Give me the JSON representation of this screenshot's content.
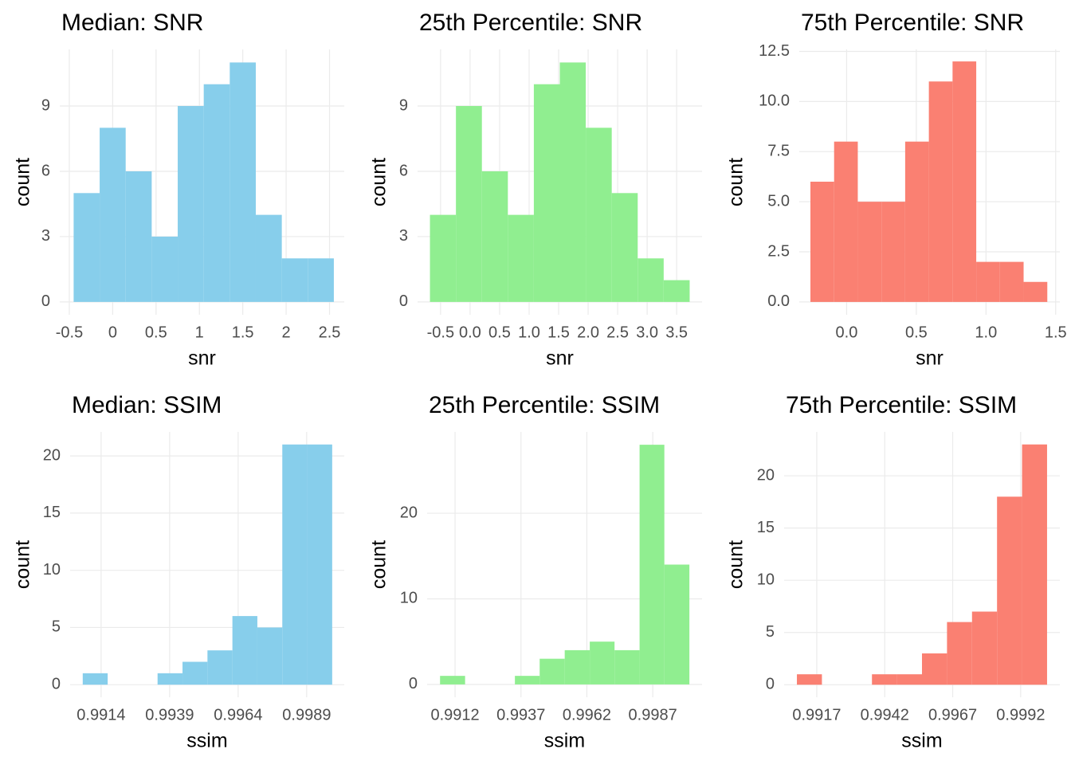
{
  "chart_data": [
    {
      "type": "histogram",
      "title": "Median: SNR",
      "xlabel": "snr",
      "ylabel": "count",
      "color": "#87ceeb",
      "grid": true,
      "bins": [
        -0.45,
        -0.15,
        0.15,
        0.45,
        0.75,
        1.05,
        1.35,
        1.65,
        1.95,
        2.25,
        2.55
      ],
      "counts": [
        5,
        8,
        6,
        3,
        9,
        10,
        11,
        4,
        2,
        2
      ],
      "xlim": [
        -0.61,
        2.67
      ],
      "ylim": [
        -0.59,
        11.6
      ],
      "xticks": [
        -0.5,
        0.0,
        0.5,
        1.0,
        1.5,
        2.0,
        2.5
      ],
      "yticks": [
        0,
        3,
        6,
        9
      ]
    },
    {
      "type": "histogram",
      "title": "25th Percentile: SNR",
      "xlabel": "snr",
      "ylabel": "count",
      "color": "#90ee90",
      "grid": true,
      "bins": [
        -0.68,
        -0.24,
        0.2,
        0.64,
        1.08,
        1.52,
        1.96,
        2.4,
        2.84,
        3.28,
        3.72
      ],
      "counts": [
        4,
        9,
        6,
        4,
        10,
        11,
        8,
        5,
        2,
        1
      ],
      "xlim": [
        -0.89,
        3.93
      ],
      "ylim": [
        -0.59,
        11.6
      ],
      "xticks": [
        -0.5,
        {
          "value": 0,
          "label": "0.0"
        },
        0.5,
        {
          "value": 1,
          "label": "1.0"
        },
        1.5,
        {
          "value": 2,
          "label": "2.0"
        },
        2.5,
        {
          "value": 3,
          "label": "3.0"
        },
        3.5
      ],
      "yticks": [
        0,
        3,
        6,
        9
      ]
    },
    {
      "type": "histogram",
      "title": "75th Percentile: SNR",
      "xlabel": "snr",
      "ylabel": "count",
      "color": "#fa8072",
      "grid": true,
      "bins": [
        -0.26,
        -0.09,
        0.08,
        0.25,
        0.42,
        0.59,
        0.76,
        0.93,
        1.1,
        1.27,
        1.44
      ],
      "counts": [
        6,
        8,
        5,
        5,
        8,
        11,
        12,
        2,
        2,
        1
      ],
      "xlim": [
        -0.34,
        1.53
      ],
      "ylim": [
        -0.64,
        12.6
      ],
      "xticks": [
        {
          "value": 0,
          "label": "0.0"
        },
        0.5,
        {
          "value": 1,
          "label": "1.0"
        },
        1.5
      ],
      "yticks": [
        {
          "value": 0,
          "label": "0.0"
        },
        2.5,
        {
          "value": 5,
          "label": "5.0"
        },
        7.5,
        {
          "value": 10,
          "label": "10.0"
        },
        12.5
      ]
    },
    {
      "type": "histogram",
      "title": "Median: SSIM",
      "xlabel": "ssim",
      "ylabel": "count",
      "color": "#87ceeb",
      "grid": true,
      "bins": [
        0.99073,
        0.99164,
        0.99255,
        0.99346,
        0.99437,
        0.99528,
        0.99619,
        0.9971,
        0.99801,
        0.99892,
        0.99983
      ],
      "counts": [
        1,
        0,
        0,
        1,
        2,
        3,
        6,
        5,
        21,
        21
      ],
      "xlim": [
        0.99027,
        1.00027
      ],
      "ylim": [
        -1.1,
        22.1
      ],
      "xticks": [
        0.9914,
        0.9939,
        0.9964,
        0.9989
      ],
      "yticks": [
        0,
        5,
        10,
        15,
        20
      ]
    },
    {
      "type": "histogram",
      "title": "25th Percentile: SSIM",
      "xlabel": "ssim",
      "ylabel": "count",
      "color": "#90ee90",
      "grid": true,
      "bins": [
        0.99063,
        0.99158,
        0.99252,
        0.99347,
        0.99441,
        0.99536,
        0.99631,
        0.99725,
        0.9982,
        0.99914,
        1.00009
      ],
      "counts": [
        1,
        0,
        0,
        1,
        3,
        4,
        5,
        4,
        28,
        14
      ],
      "xlim": [
        0.99014,
        1.00057
      ],
      "ylim": [
        -1.5,
        29.5
      ],
      "xticks": [
        0.9912,
        0.9937,
        0.9962,
        0.9987
      ],
      "yticks": [
        0,
        10,
        20
      ]
    },
    {
      "type": "histogram",
      "title": "75th Percentile: SSIM",
      "xlabel": "ssim",
      "ylabel": "count",
      "color": "#fa8072",
      "grid": true,
      "bins": [
        0.99097,
        0.99189,
        0.99281,
        0.99373,
        0.99465,
        0.99557,
        0.99649,
        0.99741,
        0.99833,
        0.99925,
        1.00017
      ],
      "counts": [
        1,
        0,
        0,
        1,
        1,
        3,
        6,
        7,
        18,
        23
      ],
      "xlim": [
        0.9905,
        1.00064
      ],
      "ylim": [
        -1.2,
        24.2
      ],
      "xticks": [
        0.9917,
        0.9942,
        0.9967,
        0.9992
      ],
      "yticks": [
        0,
        5,
        10,
        15,
        20
      ]
    }
  ]
}
